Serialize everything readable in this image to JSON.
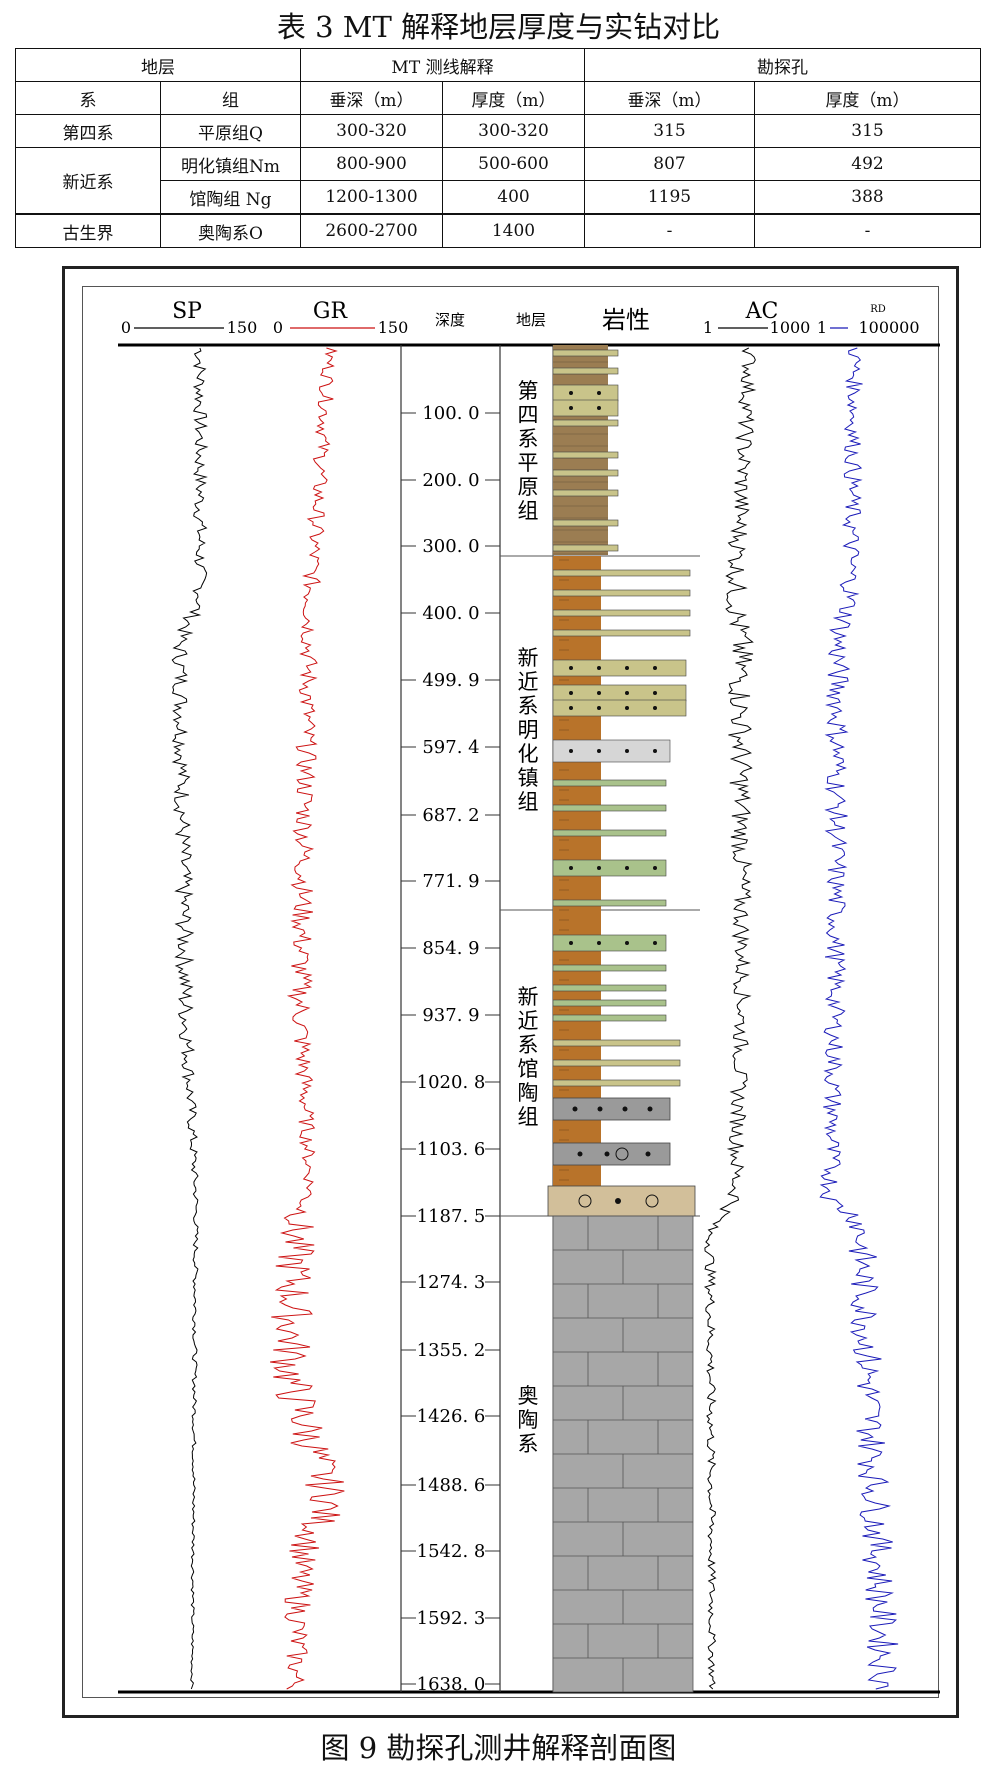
{
  "table": {
    "caption": "表 3 MT 解释地层厚度与实钻对比",
    "header_groups": [
      "地层",
      "MT 测线解释",
      "勘探孔"
    ],
    "sub_headers": [
      "系",
      "组",
      "垂深（m）",
      "厚度（m）",
      "垂深（m）",
      "厚度（m）"
    ],
    "rows": [
      {
        "system": "第四系",
        "group": "平原组Q",
        "mt_depth": "300-320",
        "mt_thick": "300-320",
        "hole_depth": "315",
        "hole_thick": "315"
      },
      {
        "system": "新近系",
        "group": "明化镇组Nm",
        "mt_depth": "800-900",
        "mt_thick": "500-600",
        "hole_depth": "807",
        "hole_thick": "492"
      },
      {
        "system": "",
        "group": "馆陶组 Ng",
        "mt_depth": "1200-1300",
        "mt_thick": "400",
        "hole_depth": "1195",
        "hole_thick": "388"
      },
      {
        "system": "古生界",
        "group": "奥陶系O",
        "mt_depth": "2600-2700",
        "mt_thick": "1400",
        "hole_depth": "-",
        "hole_thick": "-"
      }
    ]
  },
  "figure": {
    "caption": "图 9 勘探孔测井解释剖面图",
    "tracks": {
      "sp": {
        "name": "SP",
        "min": "0",
        "max": "150",
        "color": "#000000"
      },
      "gr": {
        "name": "GR",
        "min": "0",
        "max": "150",
        "color": "#cc1111"
      },
      "depth": {
        "name": "深度"
      },
      "strata": {
        "name": "地层"
      },
      "lith": {
        "name": "岩性"
      },
      "ac": {
        "name": "AC",
        "min": "1",
        "max": "1000",
        "color": "#000000"
      },
      "rd": {
        "name": "RD",
        "min": "1",
        "max": "100000",
        "color": "#1a1ab8"
      }
    },
    "depth_ticks": [
      "100. 0",
      "200. 0",
      "300. 0",
      "400. 0",
      "499. 9",
      "597. 4",
      "687. 2",
      "771. 9",
      "854. 9",
      "937. 9",
      "1020. 8",
      "1103. 6",
      "1187. 5",
      "1274. 3",
      "1355. 2",
      "1426. 6",
      "1488. 6",
      "1542. 8",
      "1592. 3",
      "1638. 0"
    ],
    "strata_labels": [
      "第四系平原组",
      "新近系明化镇组",
      "新近系馆陶组",
      "奥陶系"
    ],
    "colors": {
      "clay": "#9b7d52",
      "brown": "#b8732a",
      "sand": "#c9c48a",
      "silt_green": "#a9c28b",
      "light_gray": "#d6d6d6",
      "gray": "#9a9a9a",
      "tan": "#d2bf9a",
      "limestone": "#a7a7a7"
    }
  }
}
